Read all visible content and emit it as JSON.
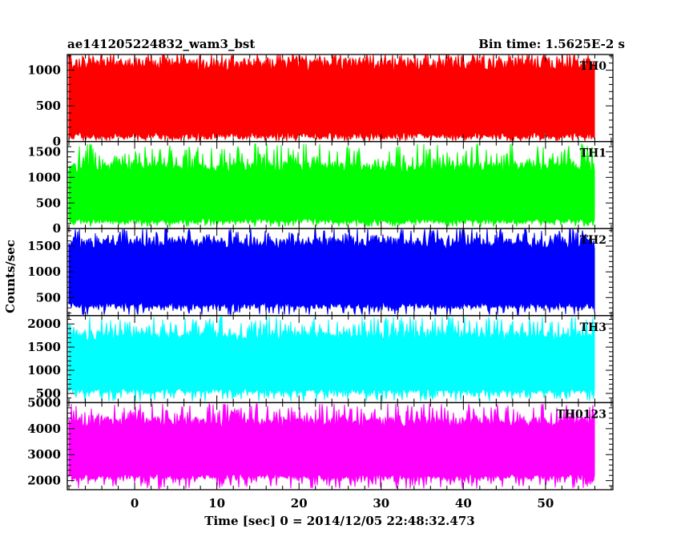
{
  "chart_data": {
    "type": "line",
    "title_left": "ae141205224832_wam3_bst",
    "title_right": "Bin time: 1.5625E-2 s",
    "xlabel": "Time [sec] 0 = 2014/12/05 22:48:32.473",
    "ylabel": "Counts/sec",
    "xlim": [
      -8.2,
      58.2
    ],
    "data_range": [
      -8.0,
      56.0
    ],
    "x_ticks": [
      0,
      10,
      20,
      30,
      40,
      50
    ],
    "x_tick_labels": [
      "0",
      "10",
      "20",
      "30",
      "40",
      "50"
    ],
    "panels": [
      {
        "name": "TH0",
        "color": "#ff0000",
        "ylim": [
          0,
          1220
        ],
        "ticks": [
          0,
          500,
          1000
        ],
        "tick_labels": [
          "0",
          "500",
          "1000"
        ],
        "level_low": 80,
        "level_high": 1080,
        "level_min": 10,
        "level_max": 1220
      },
      {
        "name": "TH1",
        "color": "#00ff00",
        "ylim": [
          0,
          1700
        ],
        "ticks": [
          0,
          500,
          1000,
          1500
        ],
        "tick_labels": [
          "0",
          "500",
          "1000",
          "1500"
        ],
        "level_low": 150,
        "level_high": 1200,
        "level_min": 40,
        "level_max": 1650
      },
      {
        "name": "TH2",
        "color": "#0000ff",
        "ylim": [
          150,
          1840
        ],
        "ticks": [
          500,
          1000,
          1500
        ],
        "tick_labels": [
          "500",
          "1000",
          "1500"
        ],
        "level_low": 350,
        "level_high": 1550,
        "level_min": 170,
        "level_max": 1830
      },
      {
        "name": "TH3",
        "color": "#00ffff",
        "ylim": [
          300,
          2180
        ],
        "ticks": [
          500,
          1000,
          1500,
          2000
        ],
        "tick_labels": [
          "500",
          "1000",
          "1500",
          "2000"
        ],
        "level_low": 550,
        "level_high": 1750,
        "level_min": 330,
        "level_max": 2150
      },
      {
        "name": "TH0123",
        "color": "#ff00ff",
        "ylim": [
          1650,
          5000
        ],
        "ticks": [
          2000,
          3000,
          4000,
          5000
        ],
        "tick_labels": [
          "2000",
          "3000",
          "4000",
          "5000"
        ],
        "level_low": 2150,
        "level_high": 4250,
        "level_min": 1700,
        "level_max": 4950
      }
    ]
  }
}
